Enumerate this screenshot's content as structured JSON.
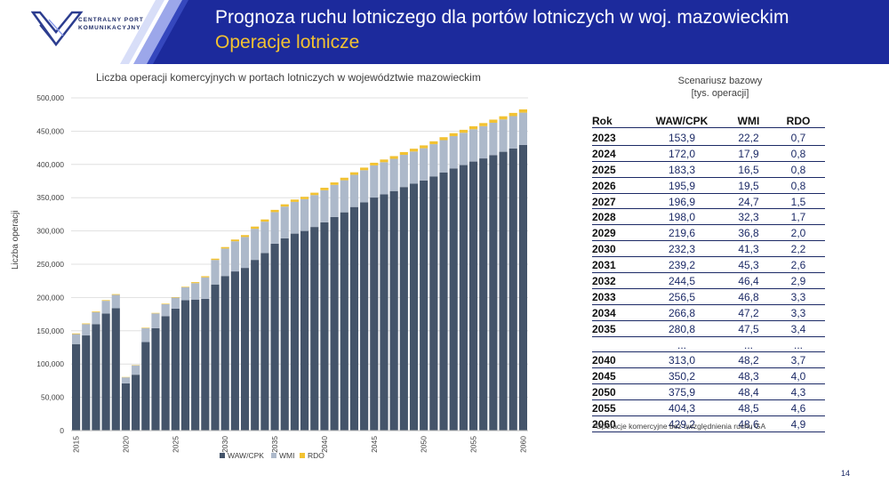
{
  "header": {
    "title": "Prognoza ruchu lotniczego dla portów lotniczych w woj. mazowieckim",
    "subtitle": "Operacje lotnicze",
    "logo_text_line1": "CENTRALNY PORT",
    "logo_text_line2": "KOMUNIKACYJNY"
  },
  "colors": {
    "header_blue": "#1c2a9c",
    "waw": "#44546a",
    "wmi": "#adb9ca",
    "rdo": "#f2c232"
  },
  "chart_data": {
    "type": "bar",
    "stacked": true,
    "title": "Liczba operacji komercyjnych w portach lotniczych w województwie mazowieckim",
    "ylabel": "Liczba operacji",
    "xlabel": "",
    "ylim": [
      0,
      500000
    ],
    "yticks": [
      "0",
      "50,000",
      "100,000",
      "150,000",
      "200,000",
      "250,000",
      "300,000",
      "350,000",
      "400,000",
      "450,000",
      "500,000"
    ],
    "grid": true,
    "legend_position": "bottom",
    "categories": [
      2015,
      2016,
      2017,
      2018,
      2019,
      2020,
      2021,
      2022,
      2023,
      2024,
      2025,
      2026,
      2027,
      2028,
      2029,
      2030,
      2031,
      2032,
      2033,
      2034,
      2035,
      2036,
      2037,
      2038,
      2039,
      2040,
      2041,
      2042,
      2043,
      2044,
      2045,
      2046,
      2047,
      2048,
      2049,
      2050,
      2051,
      2052,
      2053,
      2054,
      2055,
      2056,
      2057,
      2058,
      2059,
      2060
    ],
    "xtick_labels": [
      "2015",
      "2020",
      "2025",
      "2030",
      "2035",
      "2040",
      "2045",
      "2050",
      "2055",
      "2060"
    ],
    "series": [
      {
        "name": "WAW/CPK",
        "values": [
          130000,
          143000,
          160000,
          176000,
          184000,
          71000,
          84000,
          133000,
          153900,
          172000,
          183300,
          195900,
          196900,
          198000,
          219600,
          232300,
          239200,
          244500,
          256500,
          266800,
          280800,
          289000,
          296000,
          300000,
          306000,
          313000,
          321000,
          328000,
          336000,
          343000,
          350200,
          355000,
          360000,
          366000,
          371000,
          375900,
          382000,
          388000,
          394000,
          399000,
          404300,
          409000,
          414000,
          419000,
          424000,
          429200
        ]
      },
      {
        "name": "WMI",
        "values": [
          15000,
          17000,
          18000,
          19000,
          20000,
          9000,
          14000,
          21000,
          22200,
          17900,
          16500,
          19500,
          24700,
          32300,
          36800,
          41300,
          45300,
          46400,
          46800,
          47200,
          47500,
          47600,
          47700,
          47800,
          47900,
          48200,
          48200,
          48200,
          48300,
          48300,
          48300,
          48300,
          48400,
          48400,
          48400,
          48400,
          48400,
          48500,
          48500,
          48500,
          48500,
          48500,
          48600,
          48600,
          48600,
          48600
        ]
      },
      {
        "name": "RDO",
        "values": [
          1000,
          1000,
          1000,
          1000,
          1000,
          500,
          500,
          700,
          700,
          800,
          800,
          800,
          1500,
          1700,
          2000,
          2200,
          2600,
          2900,
          3300,
          3300,
          3400,
          3450,
          3500,
          3550,
          3600,
          3700,
          3750,
          3800,
          3850,
          3900,
          4000,
          4050,
          4100,
          4150,
          4200,
          4300,
          4350,
          4400,
          4450,
          4500,
          4600,
          4650,
          4700,
          4750,
          4800,
          4900
        ]
      }
    ]
  },
  "scenario": {
    "line1": "Scenariusz bazowy",
    "line2": "[tys. operacji]"
  },
  "table": {
    "headers": [
      "Rok",
      "WAW/CPK",
      "WMI",
      "RDO"
    ],
    "rows": [
      [
        "2023",
        "153,9",
        "22,2",
        "0,7"
      ],
      [
        "2024",
        "172,0",
        "17,9",
        "0,8"
      ],
      [
        "2025",
        "183,3",
        "16,5",
        "0,8"
      ],
      [
        "2026",
        "195,9",
        "19,5",
        "0,8"
      ],
      [
        "2027",
        "196,9",
        "24,7",
        "1,5"
      ],
      [
        "2028",
        "198,0",
        "32,3",
        "1,7"
      ],
      [
        "2029",
        "219,6",
        "36,8",
        "2,0"
      ],
      [
        "2030",
        "232,3",
        "41,3",
        "2,2"
      ],
      [
        "2031",
        "239,2",
        "45,3",
        "2,6"
      ],
      [
        "2032",
        "244,5",
        "46,4",
        "2,9"
      ],
      [
        "2033",
        "256,5",
        "46,8",
        "3,3"
      ],
      [
        "2034",
        "266,8",
        "47,2",
        "3,3"
      ],
      [
        "2035",
        "280,8",
        "47,5",
        "3,4"
      ],
      [
        "",
        "...",
        "...",
        "..."
      ],
      [
        "2040",
        "313,0",
        "48,2",
        "3,7"
      ],
      [
        "2045",
        "350,2",
        "48,3",
        "4,0"
      ],
      [
        "2050",
        "375,9",
        "48,4",
        "4,3"
      ],
      [
        "2055",
        "404,3",
        "48,5",
        "4,6"
      ],
      [
        "2060",
        "429,2",
        "48,6",
        "4,9"
      ]
    ]
  },
  "footnote": "*Operacje komercyjne bez uwzględnienia ruchu GA",
  "page_number": "14"
}
